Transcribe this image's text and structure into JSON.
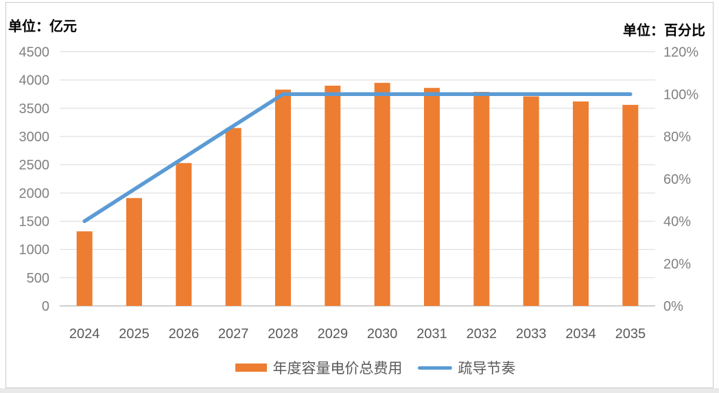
{
  "left_unit_title": "单位：亿元",
  "right_unit_title": "单位：百分比",
  "chart_data": {
    "type": "combo",
    "categories": [
      "2024",
      "2025",
      "2026",
      "2027",
      "2028",
      "2029",
      "2030",
      "2031",
      "2032",
      "2033",
      "2034",
      "2035"
    ],
    "series": [
      {
        "name": "年度容量电价总费用",
        "type": "bar",
        "axis": "left",
        "color": "#ED7D31",
        "values": [
          1320,
          1910,
          2530,
          3150,
          3830,
          3900,
          3950,
          3860,
          3790,
          3710,
          3620,
          3560
        ]
      },
      {
        "name": "疏导节奏",
        "type": "line",
        "axis": "right",
        "color": "#5B9BD5",
        "values": [
          40,
          55,
          70,
          85,
          100,
          100,
          100,
          100,
          100,
          100,
          100,
          100
        ]
      }
    ],
    "left_axis": {
      "title": "单位：亿元",
      "min": 0,
      "max": 4500,
      "step": 500,
      "tick_labels": [
        "0",
        "500",
        "1000",
        "1500",
        "2000",
        "2500",
        "3000",
        "3500",
        "4000",
        "4500"
      ]
    },
    "right_axis": {
      "title": "单位：百分比",
      "min": 0,
      "max": 120,
      "step": 20,
      "tick_labels": [
        "0%",
        "20%",
        "40%",
        "60%",
        "80%",
        "100%",
        "120%"
      ],
      "unit": "%"
    },
    "grid": "horizontal",
    "legend_position": "bottom",
    "colors": {
      "gridline": "#D9D9D9",
      "axis_line": "#BFBFBF",
      "tick_label": "#808080",
      "x_label": "#595959",
      "legend_text": "#595959"
    }
  }
}
